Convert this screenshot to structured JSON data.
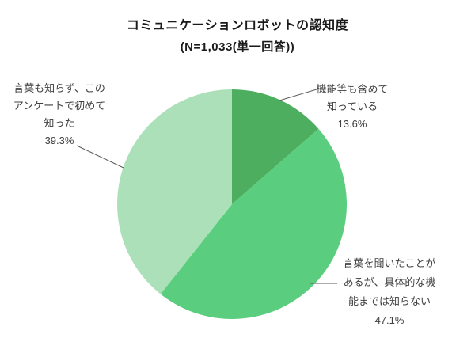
{
  "title": "コミュニケーションロボットの認知度",
  "subtitle": "(N=1,033(単一回答))",
  "chart_data": {
    "type": "pie",
    "title": "コミュニケーションロボットの認知度",
    "subtitle": "(N=1,033(単一回答))",
    "n": "1,033",
    "answer_type": "単一回答",
    "direction": "clockwise",
    "start_angle_deg": 0,
    "legend": "none",
    "slices": [
      {
        "name": "know-including-functions",
        "label": "機能等も含めて知っている",
        "value": 13.6,
        "display": "13.6%",
        "color": "#4CAE5E"
      },
      {
        "name": "heard-word-only",
        "label": "言葉を聞いたことがあるが、具体的な機能までは知らない",
        "value": 47.1,
        "display": "47.1%",
        "color": "#5ACE7E"
      },
      {
        "name": "first-time-knew",
        "label": "言葉も知らず、このアンケートで初めて知った",
        "value": 39.3,
        "display": "39.3%",
        "color": "#ABE0B8"
      }
    ]
  },
  "callouts": {
    "know_including_functions": {
      "lines": [
        "機能等も含めて",
        "知っている"
      ],
      "value": "13.6%"
    },
    "heard_word_only": {
      "lines": [
        "言葉を聞いたことが",
        "あるが、具体的な機",
        "能までは知らない"
      ],
      "value": "47.1%"
    },
    "first_time_knew": {
      "lines": [
        "言葉も知らず、この",
        "アンケートで初めて",
        "知った"
      ],
      "value": "39.3%"
    }
  },
  "style": {
    "leader_line_color": "#595959",
    "text_color": "#404040"
  }
}
